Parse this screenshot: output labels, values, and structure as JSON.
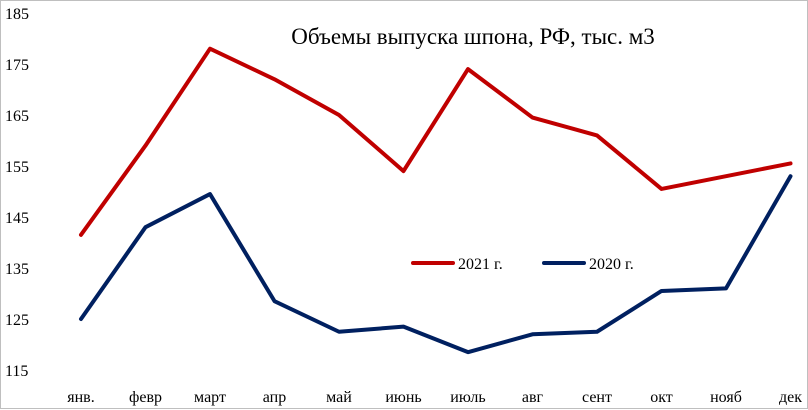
{
  "chart_data": {
    "type": "line",
    "title": "Объемы выпуска шпона, РФ, тыс. м3",
    "xlabel": "",
    "ylabel": "",
    "categories": [
      "янв.",
      "февр",
      "март",
      "апр",
      "май",
      "июнь",
      "июль",
      "авг",
      "сент",
      "окт",
      "нояб",
      "дек"
    ],
    "ylim": [
      115,
      185
    ],
    "yticks": [
      115,
      125,
      135,
      145,
      155,
      165,
      175,
      185
    ],
    "grid": false,
    "legend_position": "center-right",
    "series": [
      {
        "name": "2021 г.",
        "color": "#c00000",
        "values": [
          141.5,
          159,
          178,
          172,
          165,
          154,
          174,
          164.5,
          161,
          150.5,
          153,
          155.5
        ]
      },
      {
        "name": "2020 г.",
        "color": "#002060",
        "values": [
          125,
          143,
          149.5,
          128.5,
          122.5,
          123.5,
          118.5,
          122,
          122.5,
          130.5,
          131,
          153
        ]
      }
    ]
  }
}
